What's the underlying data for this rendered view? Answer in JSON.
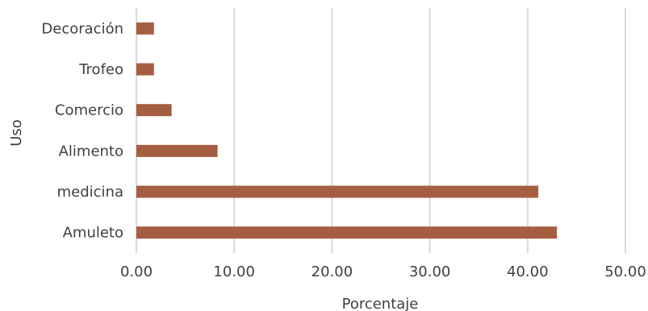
{
  "chart_data": {
    "type": "bar",
    "orientation": "horizontal",
    "categories": [
      "Decoración",
      "Trofeo",
      "Comercio",
      "Alimento",
      "medicina",
      "Amuleto"
    ],
    "values": [
      1.8,
      1.8,
      3.6,
      8.3,
      41.1,
      43.0
    ],
    "xlabel": "Porcentaje",
    "ylabel": "Uso",
    "xlim": [
      0,
      50
    ],
    "xticks": [
      "0.00",
      "10.00",
      "20.00",
      "30.00",
      "40.00",
      "50.00"
    ],
    "grid": "vertical",
    "colors": {
      "bar": "#a65e42",
      "grid": "#d9d9d9",
      "text": "#404040"
    }
  }
}
